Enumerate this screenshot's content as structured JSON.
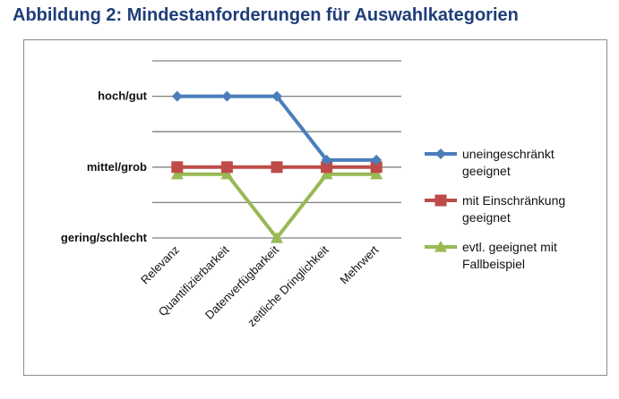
{
  "figure_title": "Abbildung 2: Mindestanforderungen für Auswahlkategorien",
  "chart_data": {
    "type": "line",
    "title": "",
    "xlabel": "",
    "ylabel": "",
    "categories": [
      "Relevanz",
      "Quantifizierbarkeit",
      "Datenverfügbarkeit",
      "zeitliche Dringlichkeit",
      "Mehrwert"
    ],
    "y_tick_labels": [
      "gering/schlecht",
      "mittel/grob",
      "hoch/gut"
    ],
    "y_tick_values": [
      1,
      2,
      3
    ],
    "ylim": [
      1,
      3.5
    ],
    "grid": true,
    "legend_position": "right",
    "series": [
      {
        "name": "uneingeschränkt geeignet",
        "values": [
          3,
          3,
          3,
          2.1,
          2.1
        ],
        "color": "#4a7ebb",
        "marker": "diamond"
      },
      {
        "name": "mit Einschränkung geeignet",
        "values": [
          2,
          2,
          2,
          2,
          2
        ],
        "color": "#be4b48",
        "marker": "square"
      },
      {
        "name": "evtl. geeignet mit Fallbeispiel",
        "values": [
          1.9,
          1.9,
          1,
          1.9,
          1.9
        ],
        "color": "#98b954",
        "marker": "triangle"
      }
    ],
    "legend_lines": [
      [
        "uneingeschränkt",
        "geeignet"
      ],
      [
        "mit Einschränkung",
        "geeignet"
      ],
      [
        "evtl. geeignet mit",
        "Fallbeispiel"
      ]
    ]
  }
}
